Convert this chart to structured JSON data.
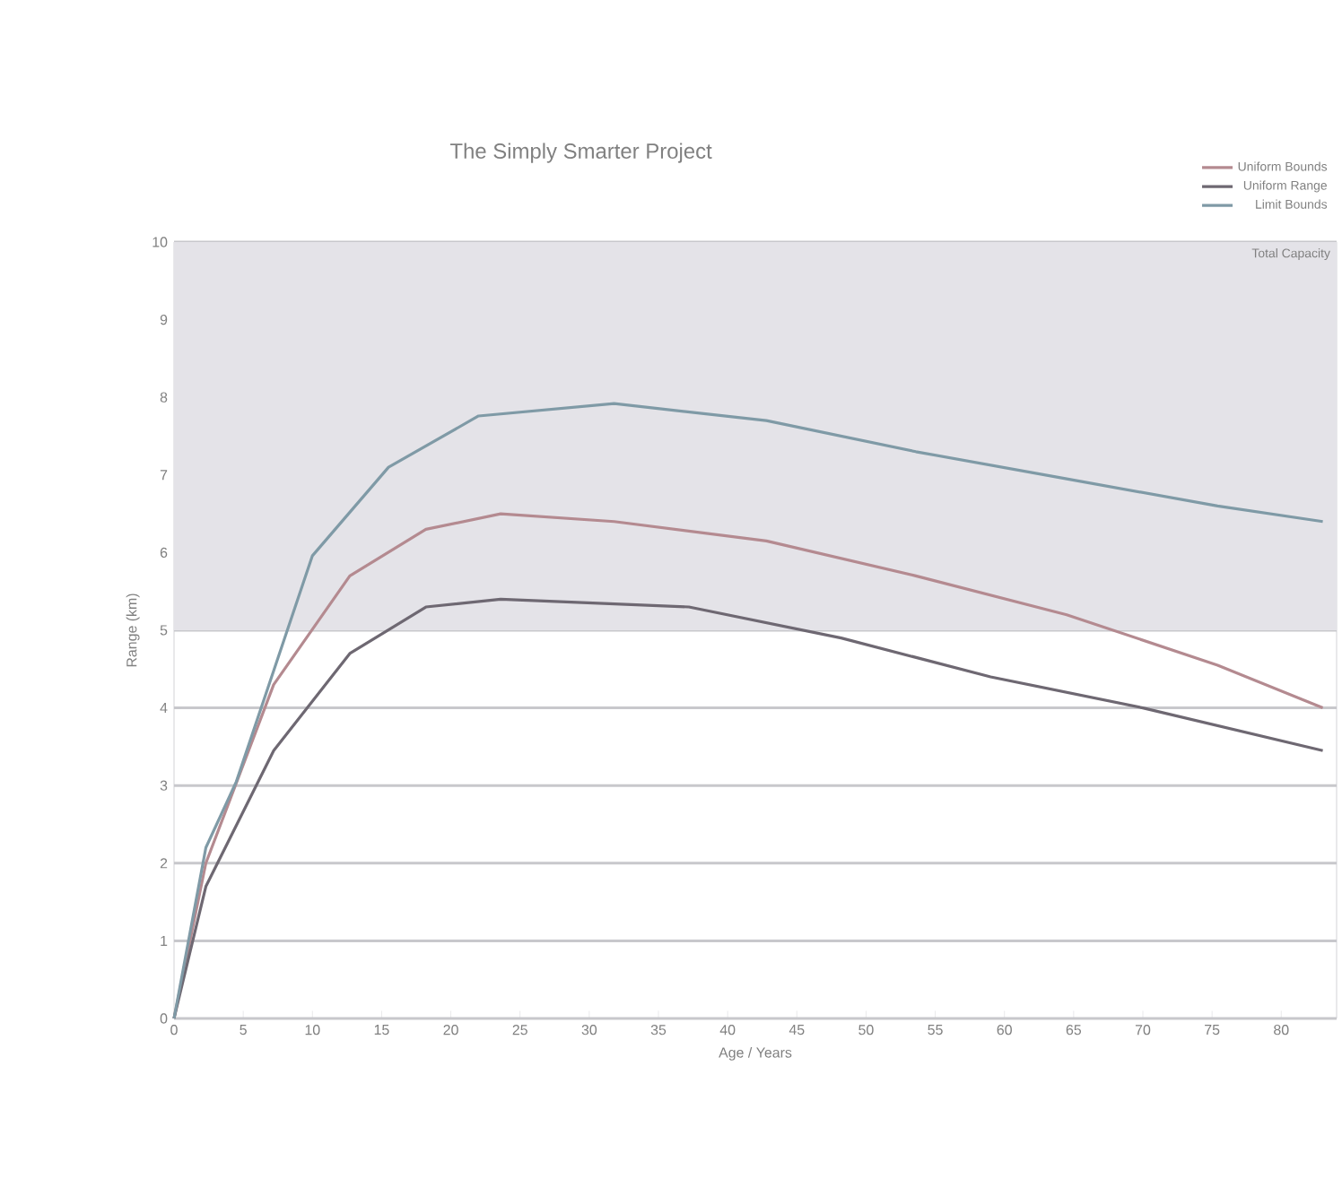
{
  "chart_data": {
    "type": "line",
    "title": "The Simply Smarter Project",
    "xlabel": "Age / Years",
    "ylabel": "Range (km)",
    "xlim": [
      0,
      84
    ],
    "xticks": [
      0,
      5,
      10,
      15,
      20,
      25,
      30,
      35,
      40,
      45,
      50,
      55,
      60,
      65,
      70,
      75,
      80
    ],
    "ylim": [
      0,
      10
    ],
    "yticks": [
      0,
      1,
      2,
      3,
      4,
      5,
      6,
      7,
      8,
      9,
      10
    ],
    "grid": "y",
    "legend": "top right",
    "marker": "none",
    "line_style": "solid",
    "bands": [
      {
        "axis": "y",
        "from": 5,
        "to": 10,
        "label": "Total Capacity",
        "color": "#e4e3e8"
      }
    ],
    "series": [
      {
        "name": "Uniform Bounds",
        "color": "#b48a90",
        "x": [
          0,
          2.3,
          7.2,
          12.7,
          18.2,
          23.6,
          31.8,
          42.8,
          53.6,
          64.5,
          75.4,
          83
        ],
        "values": [
          0,
          2.0,
          4.3,
          5.7,
          6.3,
          6.5,
          6.4,
          6.15,
          5.7,
          5.2,
          4.55,
          4.0
        ]
      },
      {
        "name": "Uniform Range",
        "color": "#6e6872",
        "x": [
          0,
          2.3,
          7.2,
          12.7,
          18.2,
          23.6,
          37.2,
          48.2,
          59,
          70,
          83
        ],
        "values": [
          0,
          1.7,
          3.45,
          4.7,
          5.3,
          5.4,
          5.3,
          4.9,
          4.4,
          4.0,
          3.45
        ]
      },
      {
        "name": "Limit Bounds",
        "color": "#7f9aa6",
        "x": [
          0,
          2.3,
          4.5,
          10,
          15.5,
          22,
          31.8,
          42.8,
          53.6,
          64.5,
          75.4,
          83
        ],
        "values": [
          0,
          2.2,
          3.05,
          5.96,
          7.1,
          7.76,
          7.92,
          7.7,
          7.3,
          6.95,
          6.6,
          6.4
        ]
      }
    ]
  }
}
